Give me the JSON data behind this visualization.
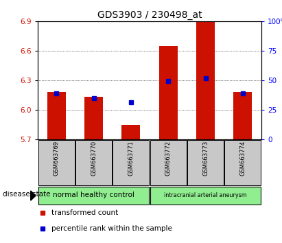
{
  "title": "GDS3903 / 230498_at",
  "samples": [
    "GSM663769",
    "GSM663770",
    "GSM663771",
    "GSM663772",
    "GSM663773",
    "GSM663774"
  ],
  "red_bar_heights": [
    6.18,
    6.13,
    5.85,
    6.65,
    6.9,
    6.18
  ],
  "blue_square_values": [
    6.17,
    6.12,
    6.08,
    6.29,
    6.32,
    6.17
  ],
  "ymin": 5.7,
  "ymax": 6.9,
  "yticks": [
    5.7,
    6.0,
    6.3,
    6.6,
    6.9
  ],
  "right_yticks": [
    0,
    25,
    50,
    75,
    100
  ],
  "bar_color": "#cc1100",
  "square_color": "#0000cc",
  "group1_label": "normal healthy control",
  "group2_label": "intracranial arterial aneurysm",
  "group1_count": 3,
  "group2_count": 3,
  "group_color": "#90ee90",
  "disease_state_label": "disease state",
  "legend_red_label": "transformed count",
  "legend_blue_label": "percentile rank within the sample",
  "tick_bg_color": "#c8c8c8",
  "bar_width": 0.5,
  "title_fontsize": 10
}
